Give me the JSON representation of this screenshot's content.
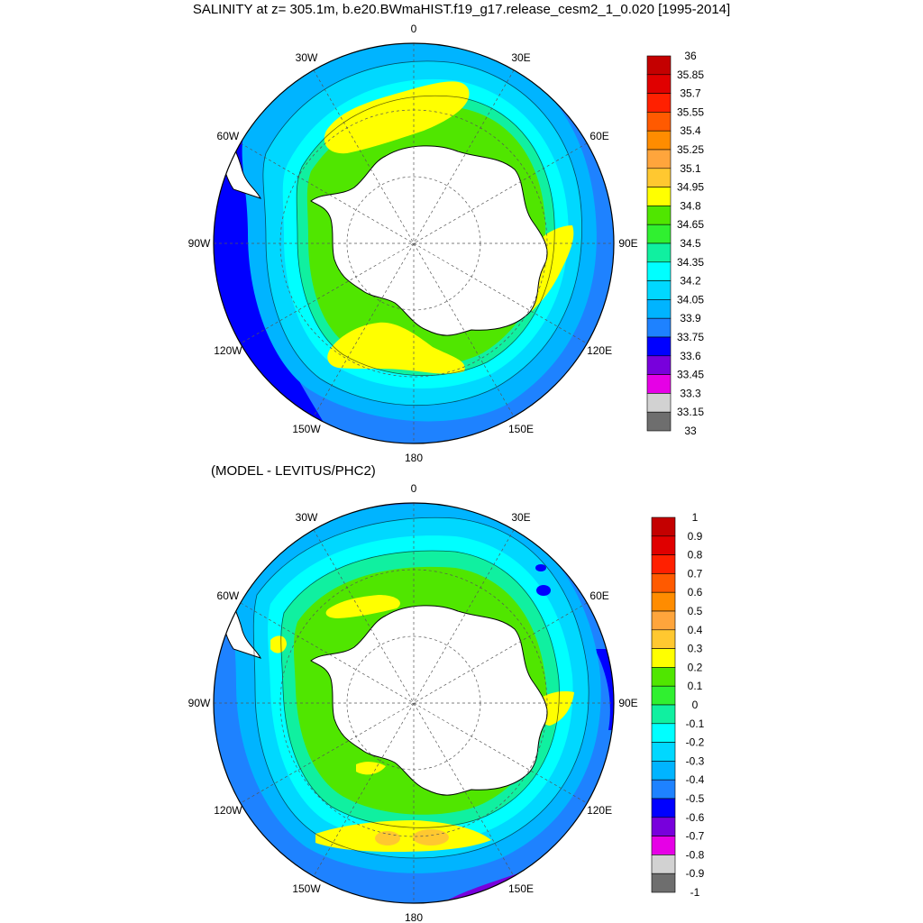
{
  "title": "SALINITY at z= 305.1m, b.e20.BWmaHIST.f19_g17.release_cesm2_1_0.020 [1995-2014]",
  "subtitle": "(MODEL - LEVITUS/PHC2)",
  "longitude_labels": [
    "0",
    "30E",
    "60E",
    "90E",
    "120E",
    "150E",
    "180",
    "150W",
    "120W",
    "90W",
    "60W",
    "30W"
  ],
  "colors": {
    "land": "#ffffff",
    "coastline": "#000000",
    "grid": "#555555"
  },
  "panels": [
    {
      "name": "salinity",
      "colorbar_labels": [
        "36",
        "35.85",
        "35.7",
        "35.55",
        "35.4",
        "35.25",
        "35.1",
        "34.95",
        "34.8",
        "34.65",
        "34.5",
        "34.35",
        "34.2",
        "34.05",
        "33.9",
        "33.75",
        "33.6",
        "33.45",
        "33.3",
        "33.15",
        "33"
      ],
      "colorbar_colors": [
        "#c40000",
        "#e00000",
        "#ff2000",
        "#ff5a00",
        "#ff8c00",
        "#ffa53c",
        "#ffc830",
        "#ffff00",
        "#50e600",
        "#30f030",
        "#10f0a0",
        "#00ffff",
        "#00d8ff",
        "#00b4ff",
        "#1e82ff",
        "#0000ff",
        "#7800dc",
        "#e600e6",
        "#d2d2d2",
        "#6e6e6e"
      ]
    },
    {
      "name": "difference",
      "colorbar_labels": [
        "1",
        "0.9",
        "0.8",
        "0.7",
        "0.6",
        "0.5",
        "0.4",
        "0.3",
        "0.2",
        "0.1",
        "0",
        "-0.1",
        "-0.2",
        "-0.3",
        "-0.4",
        "-0.5",
        "-0.6",
        "-0.7",
        "-0.8",
        "-0.9",
        "-1"
      ],
      "colorbar_colors": [
        "#c40000",
        "#e00000",
        "#ff2000",
        "#ff5a00",
        "#ff8c00",
        "#ffa53c",
        "#ffc830",
        "#ffff00",
        "#50e600",
        "#30f030",
        "#10f0a0",
        "#00ffff",
        "#00d8ff",
        "#00b4ff",
        "#1e82ff",
        "#0000ff",
        "#7800dc",
        "#e600e6",
        "#d2d2d2",
        "#6e6e6e"
      ]
    }
  ]
}
